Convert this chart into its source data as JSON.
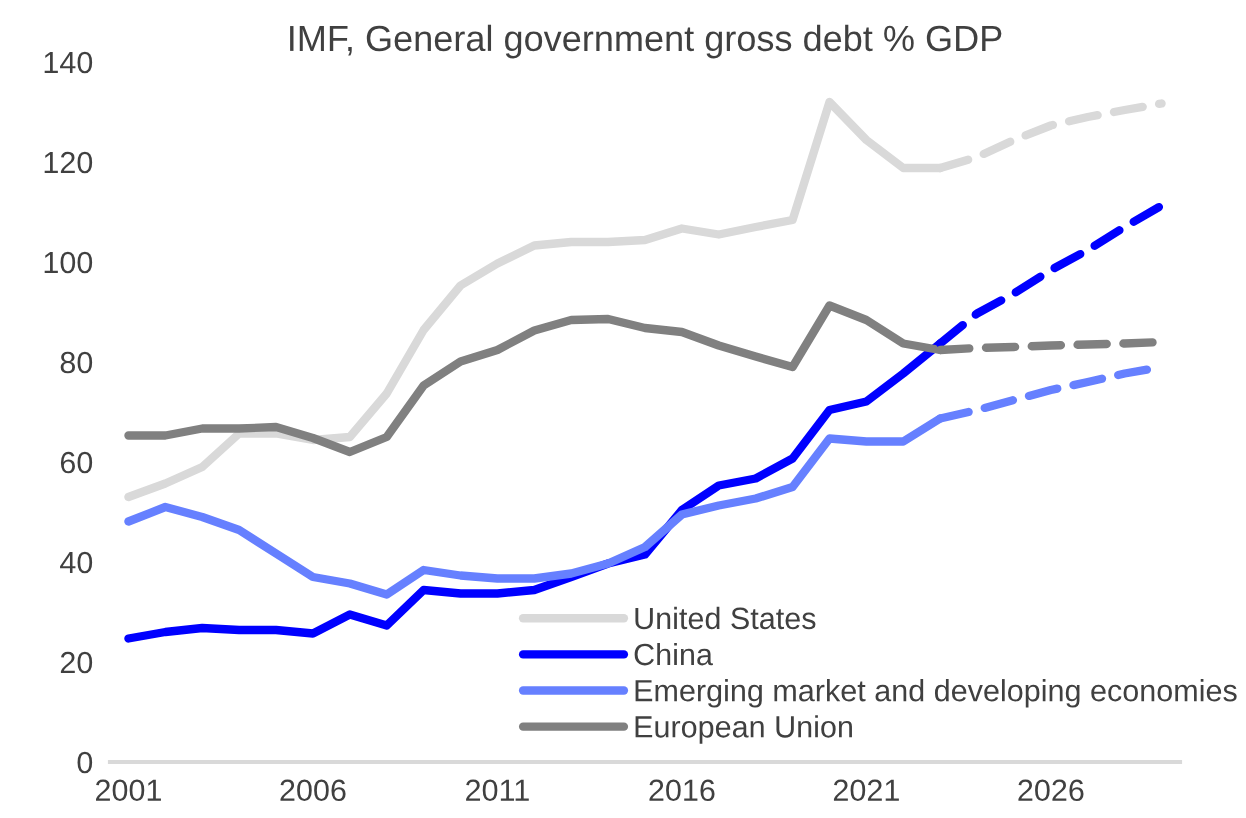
{
  "chart_data": {
    "type": "line",
    "title": "IMF, General government gross debt % GDP",
    "x": [
      2001,
      2002,
      2003,
      2004,
      2005,
      2006,
      2007,
      2008,
      2009,
      2010,
      2011,
      2012,
      2013,
      2014,
      2015,
      2016,
      2017,
      2018,
      2019,
      2020,
      2021,
      2022,
      2023,
      2024,
      2025,
      2026,
      2027,
      2028,
      2029
    ],
    "series": [
      {
        "name": "United States",
        "color": "#d9d9d9",
        "line_style": "solid",
        "values": [
          53,
          55.7,
          59,
          65.7,
          65.7,
          64.4,
          65,
          73.7,
          86.4,
          95.3,
          99.7,
          103.3,
          104,
          104,
          104.4,
          106.7,
          105.5,
          107,
          108.4,
          132,
          124.4,
          118.8,
          118.8,
          null,
          null,
          null,
          null,
          null,
          null
        ]
      },
      {
        "name": "China",
        "color": "#0000ff",
        "line_style": "solid",
        "values": [
          24.7,
          26,
          26.8,
          26.4,
          26.4,
          25.7,
          29.5,
          27.3,
          34.4,
          33.7,
          33.7,
          34.4,
          37,
          39.7,
          41.5,
          50.4,
          55.3,
          56.7,
          60.7,
          70.4,
          72.1,
          77.7,
          83.7,
          null,
          null,
          null,
          null,
          null,
          null
        ]
      },
      {
        "name": "Emerging market and developing economies",
        "color": "#6680ff",
        "line_style": "solid",
        "values": [
          48.1,
          51,
          49,
          46.4,
          41.7,
          37,
          35.7,
          33.5,
          38.4,
          37.3,
          36.7,
          36.7,
          37.7,
          39.7,
          43,
          49.5,
          51.3,
          52.7,
          55,
          64.7,
          64.1,
          64.1,
          68.7,
          null,
          null,
          null,
          null,
          null,
          null
        ]
      },
      {
        "name": "European Union",
        "color": "#808080",
        "line_style": "solid",
        "values": [
          65.3,
          65.3,
          66.7,
          66.7,
          67,
          64.8,
          62,
          65,
          75.3,
          80.1,
          82.4,
          86.3,
          88.4,
          88.6,
          86.8,
          86,
          83.3,
          81.1,
          79,
          91.3,
          88.4,
          83.7,
          82.4,
          null,
          null,
          null,
          null,
          null,
          null
        ]
      },
      {
        "color": "#d9d9d9",
        "line_style": "dashed",
        "values": [
          null,
          null,
          null,
          null,
          null,
          null,
          null,
          null,
          null,
          null,
          null,
          null,
          null,
          null,
          null,
          null,
          null,
          null,
          null,
          null,
          null,
          null,
          118.8,
          121,
          124.4,
          127.3,
          129,
          130.4,
          131.7
        ]
      },
      {
        "color": "#0000ff",
        "line_style": "dashed",
        "values": [
          null,
          null,
          null,
          null,
          null,
          null,
          null,
          null,
          null,
          null,
          null,
          null,
          null,
          null,
          null,
          null,
          null,
          null,
          null,
          null,
          null,
          null,
          83.7,
          89.7,
          93.7,
          98.4,
          102.4,
          107,
          111.3
        ]
      },
      {
        "color": "#6680ff",
        "line_style": "dashed",
        "values": [
          null,
          null,
          null,
          null,
          null,
          null,
          null,
          null,
          null,
          null,
          null,
          null,
          null,
          null,
          null,
          null,
          null,
          null,
          null,
          null,
          null,
          null,
          68.7,
          70.4,
          72.4,
          74.4,
          76,
          77.7,
          79
        ]
      },
      {
        "color": "#808080",
        "line_style": "dashed",
        "values": [
          null,
          null,
          null,
          null,
          null,
          null,
          null,
          null,
          null,
          null,
          null,
          null,
          null,
          null,
          null,
          null,
          null,
          null,
          null,
          null,
          null,
          null,
          82.4,
          82.8,
          83,
          83.3,
          83.5,
          83.7,
          84
        ]
      }
    ],
    "xlim": [
      2000.5,
      2029.5
    ],
    "xticks": [
      2001,
      2006,
      2011,
      2016,
      2021,
      2026
    ],
    "ylim": [
      0,
      140
    ],
    "yticks": [
      0,
      20,
      40,
      60,
      80,
      100,
      120,
      140
    ],
    "grid": false,
    "legend": "bottom",
    "marker": "none"
  }
}
